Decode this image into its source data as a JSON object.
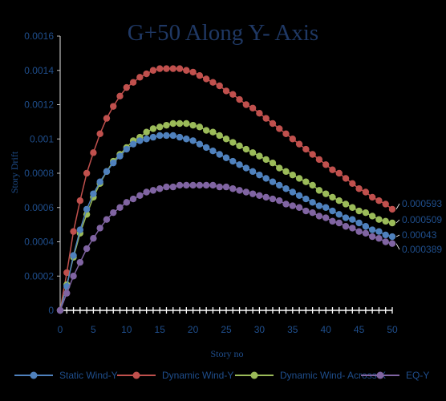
{
  "chart_data": {
    "type": "line",
    "title": "G+50 Along Y- Axis",
    "xlabel": "Story no",
    "ylabel": "Story Drift",
    "xlim": [
      0,
      50
    ],
    "ylim": [
      0,
      0.0016
    ],
    "x_ticks": [
      "0",
      "5",
      "10",
      "15",
      "20",
      "25",
      "30",
      "35",
      "40",
      "45",
      "50"
    ],
    "y_ticks": [
      "0",
      "0.0002",
      "0.0004",
      "0.0006",
      "0.0008",
      "0.001",
      "0.0012",
      "0.0014",
      "0.0016"
    ],
    "grid": false,
    "legend_position": "bottom",
    "x": [
      0,
      1,
      2,
      3,
      4,
      5,
      6,
      7,
      8,
      9,
      10,
      11,
      12,
      13,
      14,
      15,
      16,
      17,
      18,
      19,
      20,
      21,
      22,
      23,
      24,
      25,
      26,
      27,
      28,
      29,
      30,
      31,
      32,
      33,
      34,
      35,
      36,
      37,
      38,
      39,
      40,
      41,
      42,
      43,
      44,
      45,
      46,
      47,
      48,
      49,
      50
    ],
    "series": [
      {
        "name": "Static Wind-Y",
        "color": "#4f81bd",
        "end_label": "0.00043",
        "values": [
          0,
          0.00014,
          0.00032,
          0.00047,
          0.00059,
          0.00068,
          0.00075,
          0.00081,
          0.00086,
          0.0009,
          0.00094,
          0.00097,
          0.00099,
          0.001,
          0.00101,
          0.00102,
          0.00102,
          0.00102,
          0.00101,
          0.001,
          0.00099,
          0.00097,
          0.00095,
          0.00093,
          0.00091,
          0.00089,
          0.00087,
          0.00085,
          0.00083,
          0.00081,
          0.00079,
          0.00077,
          0.00075,
          0.00073,
          0.00071,
          0.00069,
          0.00067,
          0.00065,
          0.00063,
          0.00061,
          0.0006,
          0.00058,
          0.00056,
          0.00054,
          0.00053,
          0.00051,
          0.00049,
          0.00047,
          0.00046,
          0.00044,
          0.00043
        ]
      },
      {
        "name": "Dynamic Wind-Y",
        "color": "#c0504d",
        "end_label": "0.000593",
        "values": [
          0,
          0.00022,
          0.00046,
          0.00064,
          0.0008,
          0.00092,
          0.00103,
          0.00112,
          0.00119,
          0.00125,
          0.0013,
          0.00133,
          0.00136,
          0.00138,
          0.0014,
          0.00141,
          0.00141,
          0.00141,
          0.00141,
          0.0014,
          0.00139,
          0.00137,
          0.00135,
          0.00133,
          0.00131,
          0.00128,
          0.00126,
          0.00123,
          0.0012,
          0.00118,
          0.00115,
          0.00112,
          0.00109,
          0.00106,
          0.00103,
          0.001,
          0.00097,
          0.00094,
          0.00091,
          0.00088,
          0.00085,
          0.00082,
          0.0008,
          0.00077,
          0.00074,
          0.00071,
          0.00069,
          0.00066,
          0.00064,
          0.00062,
          0.00059
        ]
      },
      {
        "name": "Dynamic Wind- Across X",
        "color": "#9bbb59",
        "end_label": "0.000509",
        "values": [
          0,
          0.00015,
          0.00031,
          0.00045,
          0.00056,
          0.00066,
          0.00074,
          0.00081,
          0.00087,
          0.00091,
          0.00095,
          0.00099,
          0.00101,
          0.00104,
          0.00106,
          0.00107,
          0.00108,
          0.00109,
          0.00109,
          0.00109,
          0.00108,
          0.00107,
          0.00105,
          0.00104,
          0.00102,
          0.001,
          0.00098,
          0.00096,
          0.00094,
          0.00092,
          0.0009,
          0.00088,
          0.00086,
          0.00083,
          0.00081,
          0.00079,
          0.00077,
          0.00075,
          0.00073,
          0.0007,
          0.00068,
          0.00066,
          0.00064,
          0.00062,
          0.0006,
          0.00058,
          0.00057,
          0.00055,
          0.00053,
          0.00052,
          0.00051
        ]
      },
      {
        "name": "EQ-Y",
        "color": "#8064a2",
        "end_label": "0.000389",
        "values": [
          0,
          0.0001,
          0.0002,
          0.00028,
          0.00036,
          0.00042,
          0.00048,
          0.00053,
          0.00057,
          0.0006,
          0.00063,
          0.00065,
          0.00067,
          0.00069,
          0.0007,
          0.00071,
          0.00072,
          0.00072,
          0.00073,
          0.00073,
          0.00073,
          0.00073,
          0.00073,
          0.00073,
          0.00072,
          0.00072,
          0.00071,
          0.0007,
          0.00069,
          0.00068,
          0.00067,
          0.00066,
          0.00065,
          0.00064,
          0.00062,
          0.00061,
          0.0006,
          0.00058,
          0.00057,
          0.00055,
          0.00054,
          0.00052,
          0.00051,
          0.00049,
          0.00048,
          0.00046,
          0.00045,
          0.00043,
          0.00042,
          0.0004,
          0.00039
        ]
      }
    ]
  }
}
